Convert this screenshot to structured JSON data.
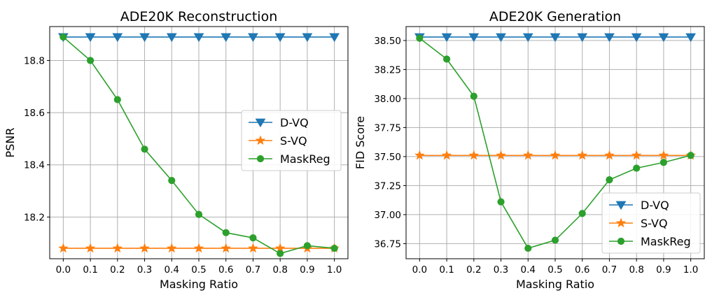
{
  "colors": {
    "D-VQ": "#1f77b4",
    "S-VQ": "#ff7f0e",
    "MaskReg": "#2ca02c"
  },
  "markers": {
    "D-VQ": "triangle-down",
    "S-VQ": "star",
    "MaskReg": "circle"
  },
  "chart_data": [
    {
      "type": "line",
      "title": "ADE20K Reconstruction",
      "xlabel": "Masking Ratio",
      "ylabel": "PSNR",
      "x": [
        0.0,
        0.1,
        0.2,
        0.3,
        0.4,
        0.5,
        0.6,
        0.7,
        0.8,
        0.9,
        1.0
      ],
      "xticks": [
        "0.0",
        "0.1",
        "0.2",
        "0.3",
        "0.4",
        "0.5",
        "0.6",
        "0.7",
        "0.8",
        "0.9",
        "1.0"
      ],
      "yticks": [
        "18.2",
        "18.4",
        "18.6",
        "18.8"
      ],
      "ytick_values": [
        18.2,
        18.4,
        18.6,
        18.8
      ],
      "xlim": [
        -0.05,
        1.05
      ],
      "ylim": [
        18.04,
        18.93
      ],
      "grid": true,
      "legend_position": "center-right",
      "series": [
        {
          "name": "D-VQ",
          "values": [
            18.89,
            18.89,
            18.89,
            18.89,
            18.89,
            18.89,
            18.89,
            18.89,
            18.89,
            18.89,
            18.89
          ]
        },
        {
          "name": "S-VQ",
          "values": [
            18.08,
            18.08,
            18.08,
            18.08,
            18.08,
            18.08,
            18.08,
            18.08,
            18.08,
            18.08,
            18.08
          ]
        },
        {
          "name": "MaskReg",
          "values": [
            18.89,
            18.8,
            18.65,
            18.46,
            18.34,
            18.21,
            18.14,
            18.12,
            18.06,
            18.09,
            18.08
          ]
        }
      ]
    },
    {
      "type": "line",
      "title": "ADE20K Generation",
      "xlabel": "Masking Ratio",
      "ylabel": "FID Score",
      "x": [
        0.0,
        0.1,
        0.2,
        0.3,
        0.4,
        0.5,
        0.6,
        0.7,
        0.8,
        0.9,
        1.0
      ],
      "xticks": [
        "0.0",
        "0.1",
        "0.2",
        "0.3",
        "0.4",
        "0.5",
        "0.6",
        "0.7",
        "0.8",
        "0.9",
        "1.0"
      ],
      "yticks": [
        "36.75",
        "37.00",
        "37.25",
        "37.50",
        "37.75",
        "38.00",
        "38.25",
        "38.50"
      ],
      "ytick_values": [
        36.75,
        37.0,
        37.25,
        37.5,
        37.75,
        38.0,
        38.25,
        38.5
      ],
      "xlim": [
        -0.05,
        1.05
      ],
      "ylim": [
        36.62,
        38.62
      ],
      "grid": true,
      "legend_position": "lower-right",
      "series": [
        {
          "name": "D-VQ",
          "values": [
            38.53,
            38.53,
            38.53,
            38.53,
            38.53,
            38.53,
            38.53,
            38.53,
            38.53,
            38.53,
            38.53
          ]
        },
        {
          "name": "S-VQ",
          "values": [
            37.51,
            37.51,
            37.51,
            37.51,
            37.51,
            37.51,
            37.51,
            37.51,
            37.51,
            37.51,
            37.51
          ]
        },
        {
          "name": "MaskReg",
          "values": [
            38.52,
            38.34,
            38.02,
            37.11,
            36.71,
            36.78,
            37.01,
            37.3,
            37.4,
            37.45,
            37.51
          ]
        }
      ]
    }
  ]
}
